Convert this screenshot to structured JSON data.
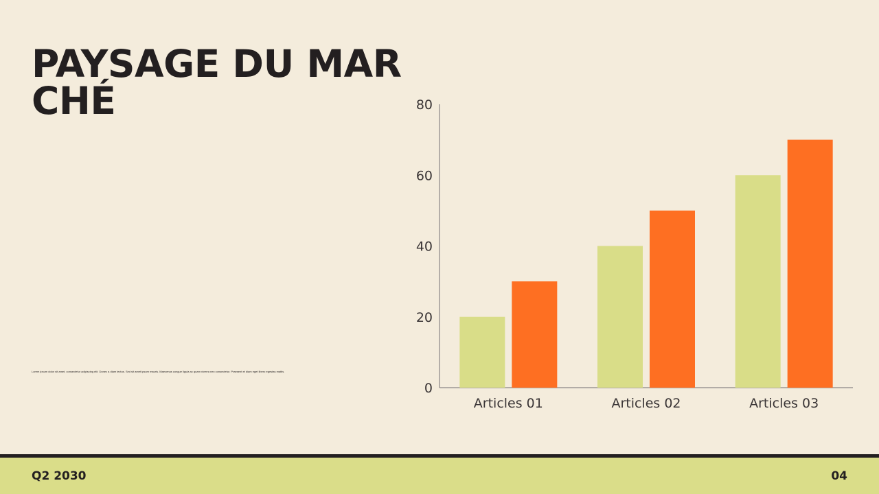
{
  "slide": {
    "title": "PAYSAGE DU MARCHÉ",
    "body": "Lorem ipsum dolor sit amet, consectetur adipiscing elit. Donec a diam lectus. Sed sit amet ipsum mauris. Maecenas congue ligula ac quam viverra nec consectetur. Praesent et diam eget libero egestas mattis.",
    "footer_left": "Q2 2030",
    "page_number": "04"
  },
  "colors": {
    "background": "#f4ecdc",
    "series_1": "#d9dd88",
    "series_2": "#fe6f22",
    "footer": "#dadd89",
    "text": "#231f20"
  },
  "chart_data": {
    "type": "bar",
    "categories": [
      "Articles 01",
      "Articles 02",
      "Articles 03"
    ],
    "series": [
      {
        "values": [
          20,
          40,
          60
        ],
        "color": "#d9dd88"
      },
      {
        "values": [
          30,
          50,
          70
        ],
        "color": "#fe6f22"
      }
    ],
    "yticks": [
      0,
      20,
      40,
      60,
      80
    ],
    "ylim": [
      0,
      80
    ],
    "title": "",
    "xlabel": "",
    "ylabel": "",
    "grid": false,
    "legend": "none"
  }
}
